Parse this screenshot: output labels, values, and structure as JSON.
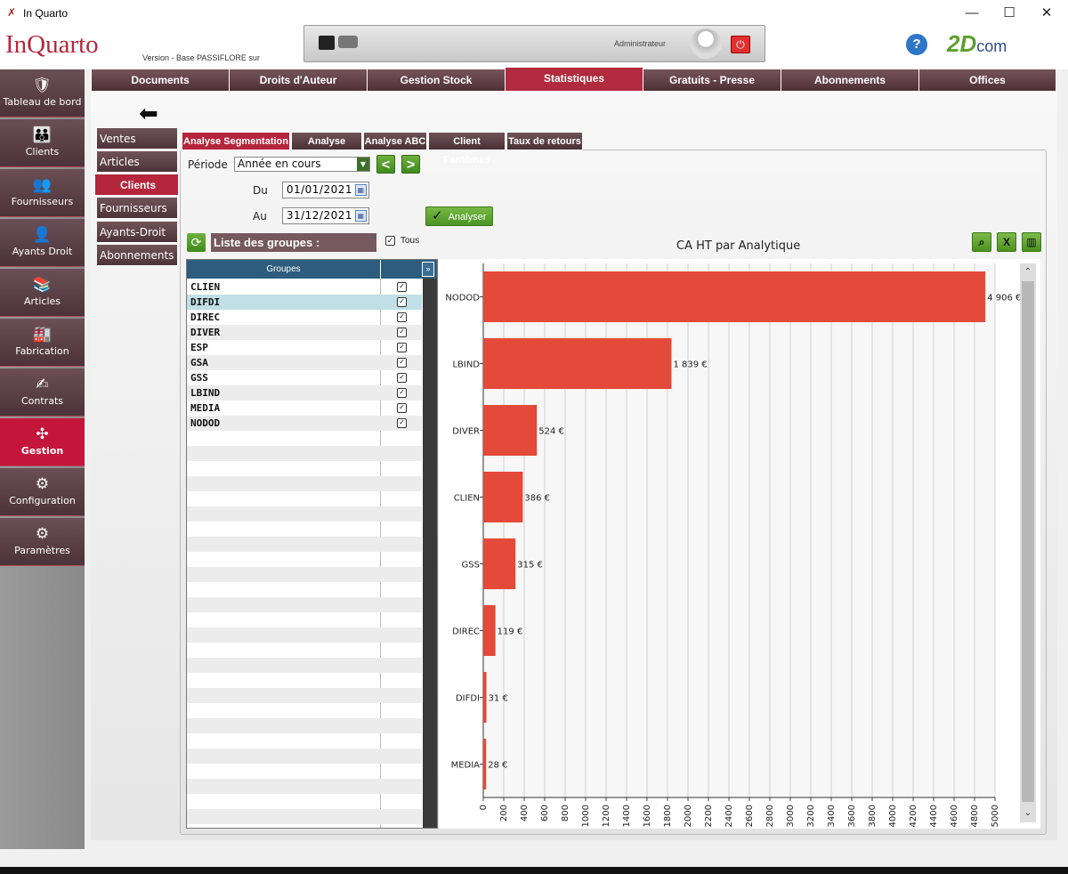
{
  "window": {
    "title": "In Quarto",
    "minimize": "—",
    "maximize": "☐",
    "close": "✕"
  },
  "header": {
    "logo": "InQuarto",
    "version": "Version  - Base PASSIFLORE sur",
    "user": "Administrateur",
    "power_icon": "power-icon",
    "help": "?",
    "brand": "2D",
    "brand_suffix": "com"
  },
  "topnav": [
    "Documents",
    "Droits d'Auteur",
    "Gestion Stock",
    "Statistiques",
    "Gratuits - Presse",
    "Abonnements",
    "Offices"
  ],
  "topnav_active": "Statistiques",
  "sidebar": [
    {
      "label": "Tableau de bord",
      "icon": "🛡"
    },
    {
      "label": "Clients",
      "icon": "👪"
    },
    {
      "label": "Fournisseurs",
      "icon": "👥"
    },
    {
      "label": "Ayants Droit",
      "icon": "👤"
    },
    {
      "label": "Articles",
      "icon": "📚"
    },
    {
      "label": "Fabrication",
      "icon": "🏭"
    },
    {
      "label": "Contrats",
      "icon": "✍"
    },
    {
      "label": "Gestion",
      "icon": "✣"
    },
    {
      "label": "Configuration",
      "icon": "⚙"
    },
    {
      "label": "Paramètres",
      "icon": "⚙"
    }
  ],
  "sidebar_active": "Gestion",
  "subnav": [
    "Ventes",
    "Articles",
    "Clients",
    "Fournisseurs",
    "Ayants-Droit",
    "Abonnements"
  ],
  "subnav_active": "Clients",
  "tabs": [
    "Analyse Segmentation",
    "Analyse Pareto",
    "Analyse ABC",
    "Client Fantômes",
    "Taux de retours"
  ],
  "tabs_active": "Analyse Segmentation",
  "filters": {
    "periode_label": "Période",
    "periode_value": "Année en cours",
    "du_label": "Du",
    "du_value": "01/01/2021",
    "au_label": "Au",
    "au_value": "31/12/2021",
    "analyser": "Analyser"
  },
  "groups_panel": {
    "title": "Liste des groupes :",
    "tous_label": "Tous",
    "column": "Groupes",
    "rows": [
      "CLIEN",
      "DIFDI",
      "DIREC",
      "DIVER",
      "ESP",
      "GSA",
      "GSS",
      "LBIND",
      "MEDIA",
      "NODOD"
    ],
    "selected_row": "DIFDI"
  },
  "chart_data": {
    "type": "bar",
    "orientation": "horizontal",
    "title": "CA HT par Analytique",
    "categories": [
      "NODOD",
      "LBIND",
      "DIVER",
      "CLIEN",
      "GSS",
      "DIREC",
      "DIFDI",
      "MEDIA"
    ],
    "values": [
      4906,
      1839,
      524,
      386,
      315,
      119,
      31,
      28
    ],
    "data_labels": [
      "4 906 €",
      "1 839 €",
      "524 €",
      "386 €",
      "315 €",
      "119 €",
      "31 €",
      "28 €"
    ],
    "xlim": [
      0,
      5000
    ],
    "xticks": [
      0,
      200,
      400,
      600,
      800,
      1000,
      1200,
      1400,
      1600,
      1800,
      2000,
      2200,
      2400,
      2600,
      2800,
      3000,
      3200,
      3400,
      3600,
      3800,
      4000,
      4200,
      4400,
      4600,
      4800,
      5000
    ],
    "grid": true,
    "bar_color": "#e34a3a"
  }
}
